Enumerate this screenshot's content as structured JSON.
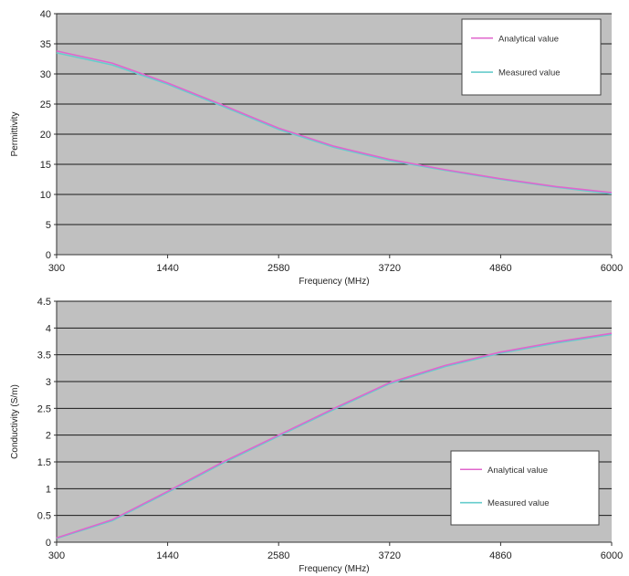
{
  "chart_data": [
    {
      "type": "line",
      "xlabel": "Frequency (MHz)",
      "ylabel": "Permittivity",
      "x": [
        300,
        1440,
        2580,
        3720,
        4860,
        6000
      ],
      "xlim": [
        300,
        6000
      ],
      "ylim": [
        0,
        40
      ],
      "yticks": [
        0,
        5,
        10,
        15,
        20,
        25,
        30,
        35,
        40
      ],
      "grid": true,
      "legend_position": "top-right",
      "plot_background": "#c0c0c0",
      "series": [
        {
          "name": "Analytical value",
          "color": "#e066cc",
          "points": [
            [
              300,
              33.8
            ],
            [
              870,
              31.8
            ],
            [
              1440,
              28.5
            ],
            [
              2010,
              24.8
            ],
            [
              2580,
              21.0
            ],
            [
              3150,
              18.0
            ],
            [
              3720,
              15.8
            ],
            [
              4290,
              14.1
            ],
            [
              4860,
              12.6
            ],
            [
              5430,
              11.3
            ],
            [
              6000,
              10.3
            ]
          ]
        },
        {
          "name": "Measured value",
          "color": "#66cccc",
          "points": [
            [
              300,
              33.5
            ],
            [
              870,
              31.5
            ],
            [
              1440,
              28.3
            ],
            [
              2010,
              24.6
            ],
            [
              2580,
              20.8
            ],
            [
              3150,
              17.8
            ],
            [
              3720,
              15.6
            ],
            [
              4290,
              14.0
            ],
            [
              4860,
              12.5
            ],
            [
              5430,
              11.2
            ],
            [
              6000,
              10.1
            ]
          ]
        }
      ]
    },
    {
      "type": "line",
      "xlabel": "Frequency (MHz)",
      "ylabel": "Conductivity (S/m)",
      "x": [
        300,
        1440,
        2580,
        3720,
        4860,
        6000
      ],
      "xlim": [
        300,
        6000
      ],
      "ylim": [
        0,
        4.5
      ],
      "yticks": [
        0,
        0.5,
        1,
        1.5,
        2,
        2.5,
        3,
        3.5,
        4,
        4.5
      ],
      "grid": true,
      "legend_position": "bottom-right",
      "plot_background": "#c0c0c0",
      "series": [
        {
          "name": "Analytical value",
          "color": "#e066cc",
          "points": [
            [
              300,
              0.08
            ],
            [
              870,
              0.42
            ],
            [
              1440,
              0.95
            ],
            [
              2010,
              1.5
            ],
            [
              2580,
              2.0
            ],
            [
              3150,
              2.5
            ],
            [
              3720,
              2.98
            ],
            [
              4290,
              3.3
            ],
            [
              4860,
              3.55
            ],
            [
              5430,
              3.74
            ],
            [
              6000,
              3.9
            ]
          ]
        },
        {
          "name": "Measured value",
          "color": "#66cccc",
          "points": [
            [
              300,
              0.07
            ],
            [
              870,
              0.4
            ],
            [
              1440,
              0.93
            ],
            [
              2010,
              1.48
            ],
            [
              2580,
              1.98
            ],
            [
              3150,
              2.48
            ],
            [
              3720,
              2.96
            ],
            [
              4290,
              3.28
            ],
            [
              4860,
              3.53
            ],
            [
              5430,
              3.72
            ],
            [
              6000,
              3.88
            ]
          ]
        }
      ]
    }
  ]
}
